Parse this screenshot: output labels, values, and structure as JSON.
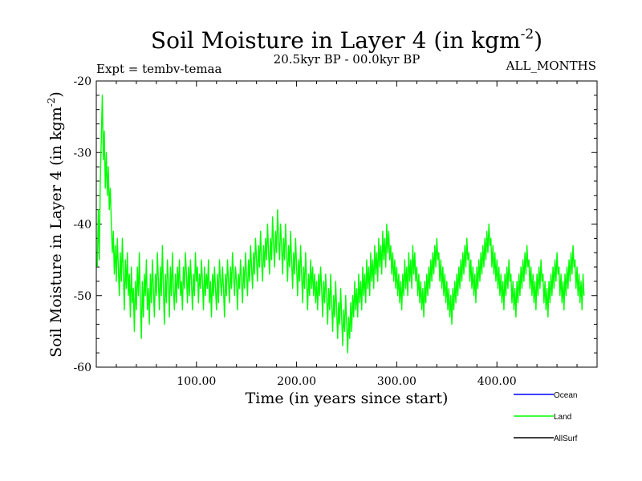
{
  "chart_data": {
    "type": "line",
    "title": "Soil Moisture in Layer 4 (in kgm",
    "title_sup": "-2",
    "title_close": ")",
    "subtitle": "20.5kyr BP - 00.0kyr BP",
    "expt_label": "Expt = tembv-temaa",
    "months_label": "ALL_MONTHS",
    "xlabel": "Time (in years since start)",
    "ylabel": "Soil Moisture in Layer 4 (in kgm",
    "ylabel_sup": "-2",
    "ylabel_close": ")",
    "xlim": [
      0,
      500
    ],
    "ylim": [
      -60,
      -20
    ],
    "x_ticks": [
      100,
      200,
      300,
      400
    ],
    "x_tick_labels": [
      "100.00",
      "200.00",
      "300.00",
      "400.00"
    ],
    "y_ticks": [
      -60,
      -50,
      -40,
      -30,
      -20
    ],
    "y_tick_labels": [
      "-60",
      "-50",
      "-40",
      "-30",
      "-20"
    ],
    "grid": false,
    "legend_position": "bottom-right",
    "series": [
      {
        "name": "Land",
        "color": "#00ff00",
        "x_start": 1,
        "x_step": 1,
        "values": [
          -46,
          -38,
          -45,
          -34,
          -28,
          -22,
          -31,
          -27,
          -35,
          -30,
          -36,
          -32,
          -38,
          -35,
          -40,
          -44,
          -41,
          -47,
          -43,
          -48,
          -42,
          -46,
          -50,
          -44,
          -48,
          -42,
          -47,
          -52,
          -45,
          -49,
          -44,
          -50,
          -47,
          -53,
          -46,
          -51,
          -49,
          -55,
          -48,
          -52,
          -46,
          -50,
          -44,
          -51,
          -56,
          -48,
          -53,
          -47,
          -50,
          -45,
          -52,
          -49,
          -54,
          -47,
          -51,
          -45,
          -49,
          -53,
          -47,
          -50,
          -44,
          -48,
          -52,
          -46,
          -50,
          -43,
          -49,
          -54,
          -47,
          -51,
          -45,
          -48,
          -53,
          -46,
          -50,
          -44,
          -49,
          -52,
          -47,
          -51,
          -46,
          -49,
          -45,
          -50,
          -48,
          -52,
          -46,
          -49,
          -44,
          -47,
          -51,
          -46,
          -50,
          -45,
          -48,
          -52,
          -47,
          -50,
          -44,
          -48,
          -46,
          -51,
          -47,
          -49,
          -45,
          -48,
          -52,
          -46,
          -50,
          -47,
          -49,
          -45,
          -51,
          -48,
          -53,
          -47,
          -50,
          -46,
          -49,
          -52,
          -47,
          -51,
          -45,
          -48,
          -50,
          -46,
          -49,
          -53,
          -47,
          -50,
          -45,
          -48,
          -51,
          -46,
          -49,
          -44,
          -47,
          -50,
          -46,
          -48,
          -52,
          -47,
          -49,
          -45,
          -48,
          -51,
          -46,
          -49,
          -44,
          -47,
          -50,
          -45,
          -48,
          -43,
          -46,
          -49,
          -44,
          -47,
          -42,
          -45,
          -48,
          -43,
          -46,
          -41,
          -45,
          -48,
          -43,
          -46,
          -42,
          -45,
          -40,
          -44,
          -47,
          -42,
          -45,
          -39,
          -43,
          -46,
          -41,
          -44,
          -38,
          -42,
          -45,
          -40,
          -43,
          -47,
          -42,
          -45,
          -40,
          -44,
          -48,
          -43,
          -46,
          -41,
          -45,
          -49,
          -44,
          -47,
          -42,
          -46,
          -50,
          -45,
          -48,
          -43,
          -47,
          -51,
          -46,
          -49,
          -44,
          -48,
          -52,
          -47,
          -50,
          -45,
          -49,
          -46,
          -50,
          -47,
          -51,
          -48,
          -52,
          -47,
          -50,
          -46,
          -49,
          -53,
          -48,
          -51,
          -47,
          -50,
          -54,
          -49,
          -52,
          -47,
          -51,
          -55,
          -50,
          -53,
          -48,
          -52,
          -56,
          -51,
          -54,
          -49,
          -53,
          -57,
          -52,
          -55,
          -50,
          -54,
          -58,
          -53,
          -56,
          -51,
          -55,
          -50,
          -53,
          -48,
          -52,
          -49,
          -53,
          -47,
          -51,
          -48,
          -52,
          -46,
          -50,
          -47,
          -51,
          -45,
          -49,
          -46,
          -50,
          -44,
          -48,
          -45,
          -49,
          -43,
          -47,
          -44,
          -48,
          -42,
          -46,
          -43,
          -47,
          -41,
          -45,
          -42,
          -46,
          -40,
          -44,
          -41,
          -45,
          -43,
          -47,
          -44,
          -48,
          -45,
          -49,
          -46,
          -50,
          -47,
          -51,
          -48,
          -52,
          -47,
          -50,
          -45,
          -49,
          -46,
          -50,
          -44,
          -48,
          -45,
          -49,
          -43,
          -47,
          -44,
          -48,
          -46,
          -50,
          -47,
          -51,
          -48,
          -52,
          -49,
          -53,
          -48,
          -51,
          -47,
          -50,
          -46,
          -49,
          -45,
          -48,
          -44,
          -47,
          -43,
          -46,
          -42,
          -45,
          -44,
          -48,
          -45,
          -49,
          -46,
          -50,
          -47,
          -51,
          -48,
          -52,
          -49,
          -53,
          -50,
          -54,
          -49,
          -52,
          -48,
          -51,
          -47,
          -50,
          -46,
          -49,
          -45,
          -48,
          -44,
          -47,
          -43,
          -46,
          -42,
          -45,
          -44,
          -48,
          -45,
          -49,
          -46,
          -50,
          -47,
          -51,
          -46,
          -49,
          -45,
          -48,
          -44,
          -47,
          -43,
          -46,
          -42,
          -45,
          -41,
          -44,
          -40,
          -43,
          -42,
          -46,
          -43,
          -47,
          -44,
          -48,
          -45,
          -49,
          -46,
          -50,
          -47,
          -51,
          -48,
          -52,
          -47,
          -50,
          -46,
          -49,
          -45,
          -48,
          -47,
          -51,
          -48,
          -52,
          -49,
          -53,
          -48,
          -51,
          -47,
          -50,
          -46,
          -49,
          -45,
          -48,
          -44,
          -47,
          -43,
          -46,
          -45,
          -49,
          -46,
          -50,
          -47,
          -51,
          -48,
          -52,
          -47,
          -50,
          -46,
          -49,
          -45,
          -48,
          -47,
          -51,
          -48,
          -52,
          -49,
          -53,
          -48,
          -51,
          -47,
          -50,
          -46,
          -49,
          -45,
          -48,
          -44,
          -47,
          -46,
          -50,
          -47,
          -51,
          -48,
          -52,
          -47,
          -50,
          -46,
          -49,
          -45,
          -48,
          -44,
          -47,
          -43,
          -46,
          -45,
          -49,
          -46,
          -50,
          -47,
          -51,
          -48,
          -52,
          -47,
          -50
        ]
      },
      {
        "name": "Ocean",
        "color": "#0000ff",
        "values": []
      },
      {
        "name": "AllSurf",
        "color": "#000000",
        "values": []
      }
    ],
    "legend": [
      {
        "label": "Ocean",
        "color": "#0000ff"
      },
      {
        "label": "Land",
        "color": "#00ff00"
      },
      {
        "label": "AllSurf",
        "color": "#000000"
      }
    ]
  }
}
